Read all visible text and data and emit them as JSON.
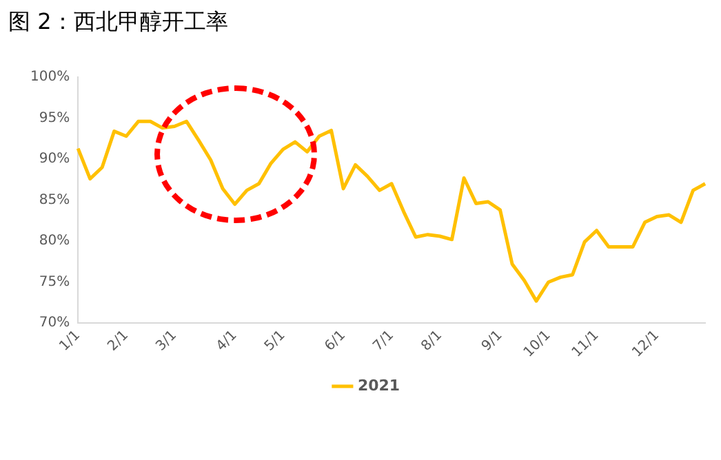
{
  "chart_data": {
    "type": "line",
    "title": "图 2：西北甲醇开工率",
    "categories": [
      "1/1",
      null,
      null,
      null,
      "2/1",
      null,
      null,
      null,
      "3/1",
      null,
      null,
      null,
      null,
      "4/1",
      null,
      null,
      null,
      "5/1",
      null,
      null,
      null,
      null,
      "6/1",
      null,
      null,
      null,
      "7/1",
      null,
      null,
      null,
      "8/1",
      null,
      null,
      null,
      null,
      "9/1",
      null,
      null,
      null,
      "10/1",
      null,
      null,
      null,
      "11/1",
      null,
      null,
      null,
      null,
      "12/1",
      null,
      null,
      null,
      null
    ],
    "series": [
      {
        "name": "2021",
        "color": "#ffc000",
        "values": [
          91.3,
          87.6,
          89.0,
          93.4,
          92.8,
          94.6,
          94.6,
          93.8,
          94.0,
          94.6,
          92.3,
          89.9,
          86.4,
          84.5,
          86.2,
          87.0,
          89.5,
          91.2,
          92.1,
          90.9,
          92.8,
          93.5,
          86.4,
          89.3,
          87.9,
          86.2,
          87.0,
          83.6,
          80.5,
          80.8,
          80.6,
          80.2,
          87.7,
          84.6,
          84.8,
          83.8,
          77.2,
          75.2,
          72.7,
          75.0,
          75.6,
          75.9,
          79.9,
          81.3,
          79.3,
          79.3,
          79.3,
          82.3,
          83.0,
          83.2,
          82.3,
          86.2,
          87.0
        ]
      }
    ],
    "ylim": [
      70,
      100
    ],
    "yticks": [
      {
        "value": 70,
        "label": "70%"
      },
      {
        "value": 75,
        "label": "75%"
      },
      {
        "value": 80,
        "label": "80%"
      },
      {
        "value": 85,
        "label": "85%"
      },
      {
        "value": 90,
        "label": "90%"
      },
      {
        "value": 95,
        "label": "95%"
      },
      {
        "value": 100,
        "label": "100%"
      }
    ],
    "grid": false,
    "legend": "bottom",
    "marker": "none",
    "line_style": "solid"
  }
}
